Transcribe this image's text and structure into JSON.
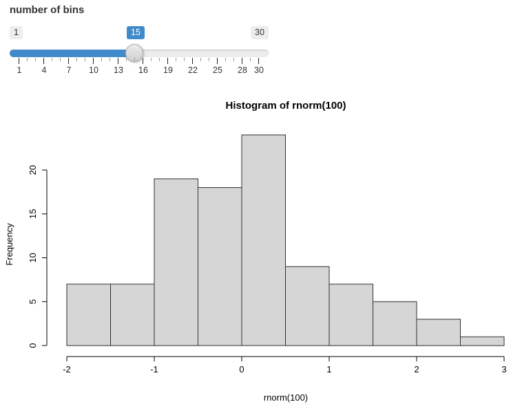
{
  "slider": {
    "label": "number of bins",
    "min": 1,
    "max": 30,
    "value": 15,
    "min_label": "1",
    "max_label": "30",
    "value_label": "15",
    "labeled_ticks": [
      1,
      4,
      7,
      10,
      13,
      16,
      19,
      22,
      25,
      28,
      30
    ],
    "accent_color": "#428bca",
    "track_color": "#ededed"
  },
  "chart_data": {
    "type": "bar",
    "subtype": "histogram",
    "title": "Histogram of rnorm(100)",
    "xlabel": "rnorm(100)",
    "ylabel": "Frequency",
    "bin_edges": [
      -2,
      -1.5,
      -1,
      -0.5,
      0,
      0.5,
      1,
      1.5,
      2,
      2.5,
      3
    ],
    "values": [
      7,
      7,
      19,
      18,
      24,
      9,
      7,
      5,
      3,
      1
    ],
    "x_ticks": [
      -2,
      -1,
      0,
      1,
      2,
      3
    ],
    "y_ticks": [
      0,
      5,
      10,
      15,
      20
    ],
    "xlim": [
      -2,
      3
    ],
    "ylim": [
      0,
      24
    ],
    "grid": false,
    "legend": null,
    "bar_fill": "#d6d6d6",
    "bar_border": "#2e2e2e",
    "axis_color": "#000000"
  }
}
